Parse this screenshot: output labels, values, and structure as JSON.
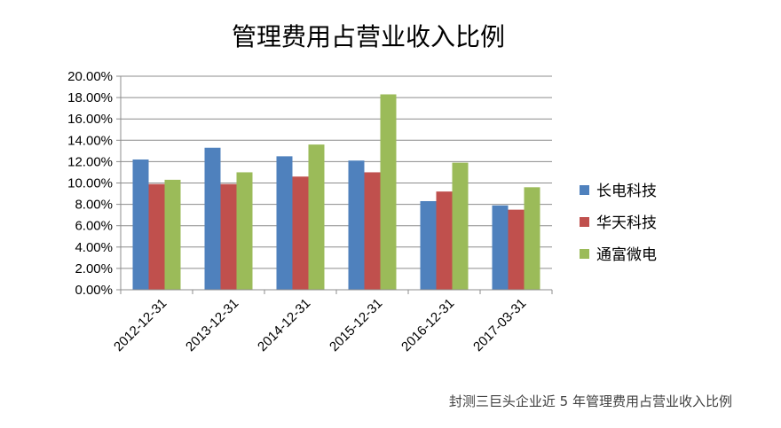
{
  "chart_data": {
    "type": "bar",
    "title": "管理费用占营业收入比例",
    "xlabel": "",
    "ylabel": "",
    "categories": [
      "2012-12-31",
      "2013-12-31",
      "2014-12-31",
      "2015-12-31",
      "2016-12-31",
      "2017-03-31"
    ],
    "series": [
      {
        "name": "长电科技",
        "color": "#4F81BD",
        "values": [
          12.2,
          13.3,
          12.5,
          12.1,
          8.3,
          7.9
        ]
      },
      {
        "name": "华天科技",
        "color": "#C0504D",
        "values": [
          9.9,
          9.9,
          10.6,
          11.0,
          9.2,
          7.5
        ]
      },
      {
        "name": "通富微电",
        "color": "#9BBB59",
        "values": [
          10.3,
          11.0,
          13.6,
          18.3,
          11.9,
          9.6
        ]
      }
    ],
    "ylim": [
      0,
      20
    ],
    "yticks": [
      "0.00%",
      "2.00%",
      "4.00%",
      "6.00%",
      "8.00%",
      "10.00%",
      "12.00%",
      "14.00%",
      "16.00%",
      "18.00%",
      "20.00%"
    ],
    "grid": true,
    "legend_position": "right"
  },
  "caption": "封测三巨头企业近 5 年管理费用占营业收入比例"
}
